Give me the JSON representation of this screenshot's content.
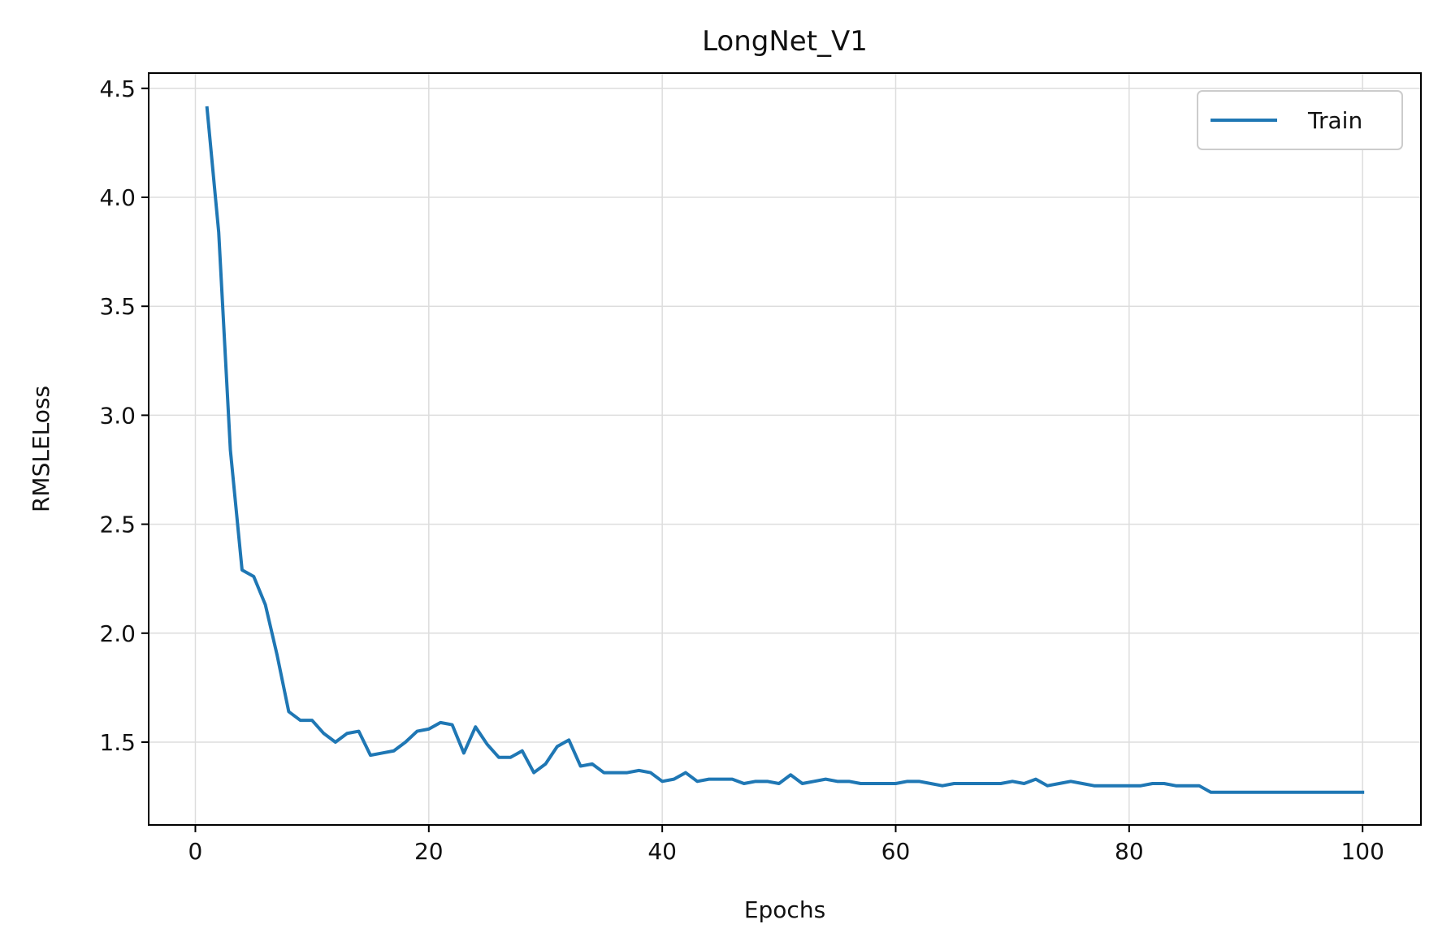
{
  "chart_data": {
    "type": "line",
    "title": "LongNet_V1",
    "xlabel": "Epochs",
    "ylabel": "RMSLELoss",
    "xlim": [
      -4,
      105
    ],
    "ylim": [
      1.12,
      4.57
    ],
    "x_ticks": [
      0,
      20,
      40,
      60,
      80,
      100
    ],
    "y_ticks": [
      1.5,
      2.0,
      2.5,
      3.0,
      3.5,
      4.0,
      4.5
    ],
    "x_tick_labels": [
      "0",
      "20",
      "40",
      "60",
      "80",
      "100"
    ],
    "y_tick_labels": [
      "1.5",
      "2.0",
      "2.5",
      "3.0",
      "3.5",
      "4.0",
      "4.5"
    ],
    "grid": true,
    "legend_position": "top-right",
    "colors": {
      "train": "#1f77b4",
      "grid": "#dddddd",
      "axes": "#000000"
    },
    "series": [
      {
        "name": "Train",
        "x": [
          1,
          2,
          3,
          4,
          5,
          6,
          7,
          8,
          9,
          10,
          11,
          12,
          13,
          14,
          15,
          16,
          17,
          18,
          19,
          20,
          21,
          22,
          23,
          24,
          25,
          26,
          27,
          28,
          29,
          30,
          31,
          32,
          33,
          34,
          35,
          36,
          37,
          38,
          39,
          40,
          41,
          42,
          43,
          44,
          45,
          46,
          47,
          48,
          49,
          50,
          51,
          52,
          53,
          54,
          55,
          56,
          57,
          58,
          59,
          60,
          61,
          62,
          63,
          64,
          65,
          66,
          67,
          68,
          69,
          70,
          71,
          72,
          73,
          74,
          75,
          76,
          77,
          78,
          79,
          80,
          81,
          82,
          83,
          84,
          85,
          86,
          87,
          88,
          89,
          90,
          91,
          92,
          93,
          94,
          95,
          96,
          97,
          98,
          99,
          100
        ],
        "values": [
          4.41,
          3.84,
          2.84,
          2.29,
          2.26,
          2.13,
          1.9,
          1.64,
          1.6,
          1.6,
          1.54,
          1.5,
          1.54,
          1.55,
          1.44,
          1.45,
          1.46,
          1.5,
          1.55,
          1.56,
          1.59,
          1.58,
          1.45,
          1.57,
          1.49,
          1.43,
          1.43,
          1.46,
          1.36,
          1.4,
          1.48,
          1.51,
          1.39,
          1.4,
          1.36,
          1.36,
          1.36,
          1.37,
          1.36,
          1.32,
          1.33,
          1.36,
          1.32,
          1.33,
          1.33,
          1.33,
          1.31,
          1.32,
          1.32,
          1.31,
          1.35,
          1.31,
          1.32,
          1.33,
          1.32,
          1.32,
          1.31,
          1.31,
          1.31,
          1.31,
          1.32,
          1.32,
          1.31,
          1.3,
          1.31,
          1.31,
          1.31,
          1.31,
          1.31,
          1.32,
          1.31,
          1.33,
          1.3,
          1.31,
          1.32,
          1.31,
          1.3,
          1.3,
          1.3,
          1.3,
          1.3,
          1.31,
          1.31,
          1.3,
          1.3,
          1.3,
          1.27,
          1.27,
          1.27,
          1.27,
          1.27,
          1.27,
          1.27,
          1.27,
          1.27,
          1.27,
          1.27,
          1.27,
          1.27,
          1.27
        ]
      }
    ]
  }
}
